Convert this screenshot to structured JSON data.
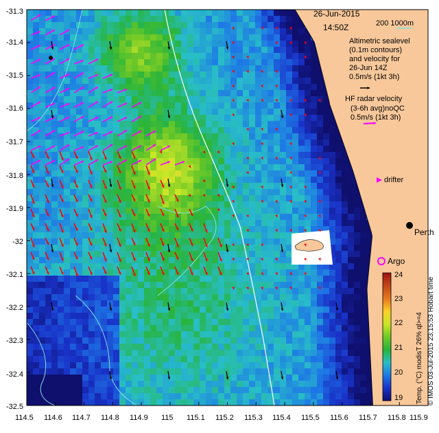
{
  "header": {
    "date": "26-Jun-2015",
    "time": "14:50Z",
    "depth_contours": "200   1000m"
  },
  "legend": {
    "altimetric": [
      "Altimetric sealevel",
      "(0.1m contours)",
      "and velocity for",
      "26-Jun 14Z",
      "0.5m/s (1kt 3h)"
    ],
    "hf_radar": [
      "HF radar velocity",
      "(3-6h avg)noQC",
      "0.5m/s (1kt 3h)"
    ],
    "drifter": "drifter",
    "argo": "Argo",
    "city": "Perth",
    "credit": "© IMOS 03-Jul-2015 23:15:53 Hobart time",
    "colorbar_label": "Temp. (°C) modisT 26% ql>=4"
  },
  "axes": {
    "y_ticks": [
      "-31.3",
      "-31.4",
      "-31.5",
      "-31.6",
      "-31.7",
      "-31.8",
      "-31.9",
      "-32",
      "-32.1",
      "-32.2",
      "-32.3",
      "-32.4",
      "-32.5"
    ],
    "x_ticks": [
      "114.5",
      "114.6",
      "114.7",
      "114.8",
      "114.9",
      "115",
      "115.1",
      "115.2",
      "115.3",
      "115.4",
      "115.5",
      "115.6",
      "115.7",
      "115.8",
      "115.9"
    ]
  },
  "colorbar": {
    "ticks": [
      "24",
      "23",
      "22",
      "21",
      "20",
      "19"
    ],
    "range": [
      19,
      24
    ]
  },
  "colors": {
    "land": "#f8c89b",
    "hf_arrow": "#ff00ff",
    "alt_arrow": "#ff0000",
    "contour": "#7fe0e0"
  }
}
